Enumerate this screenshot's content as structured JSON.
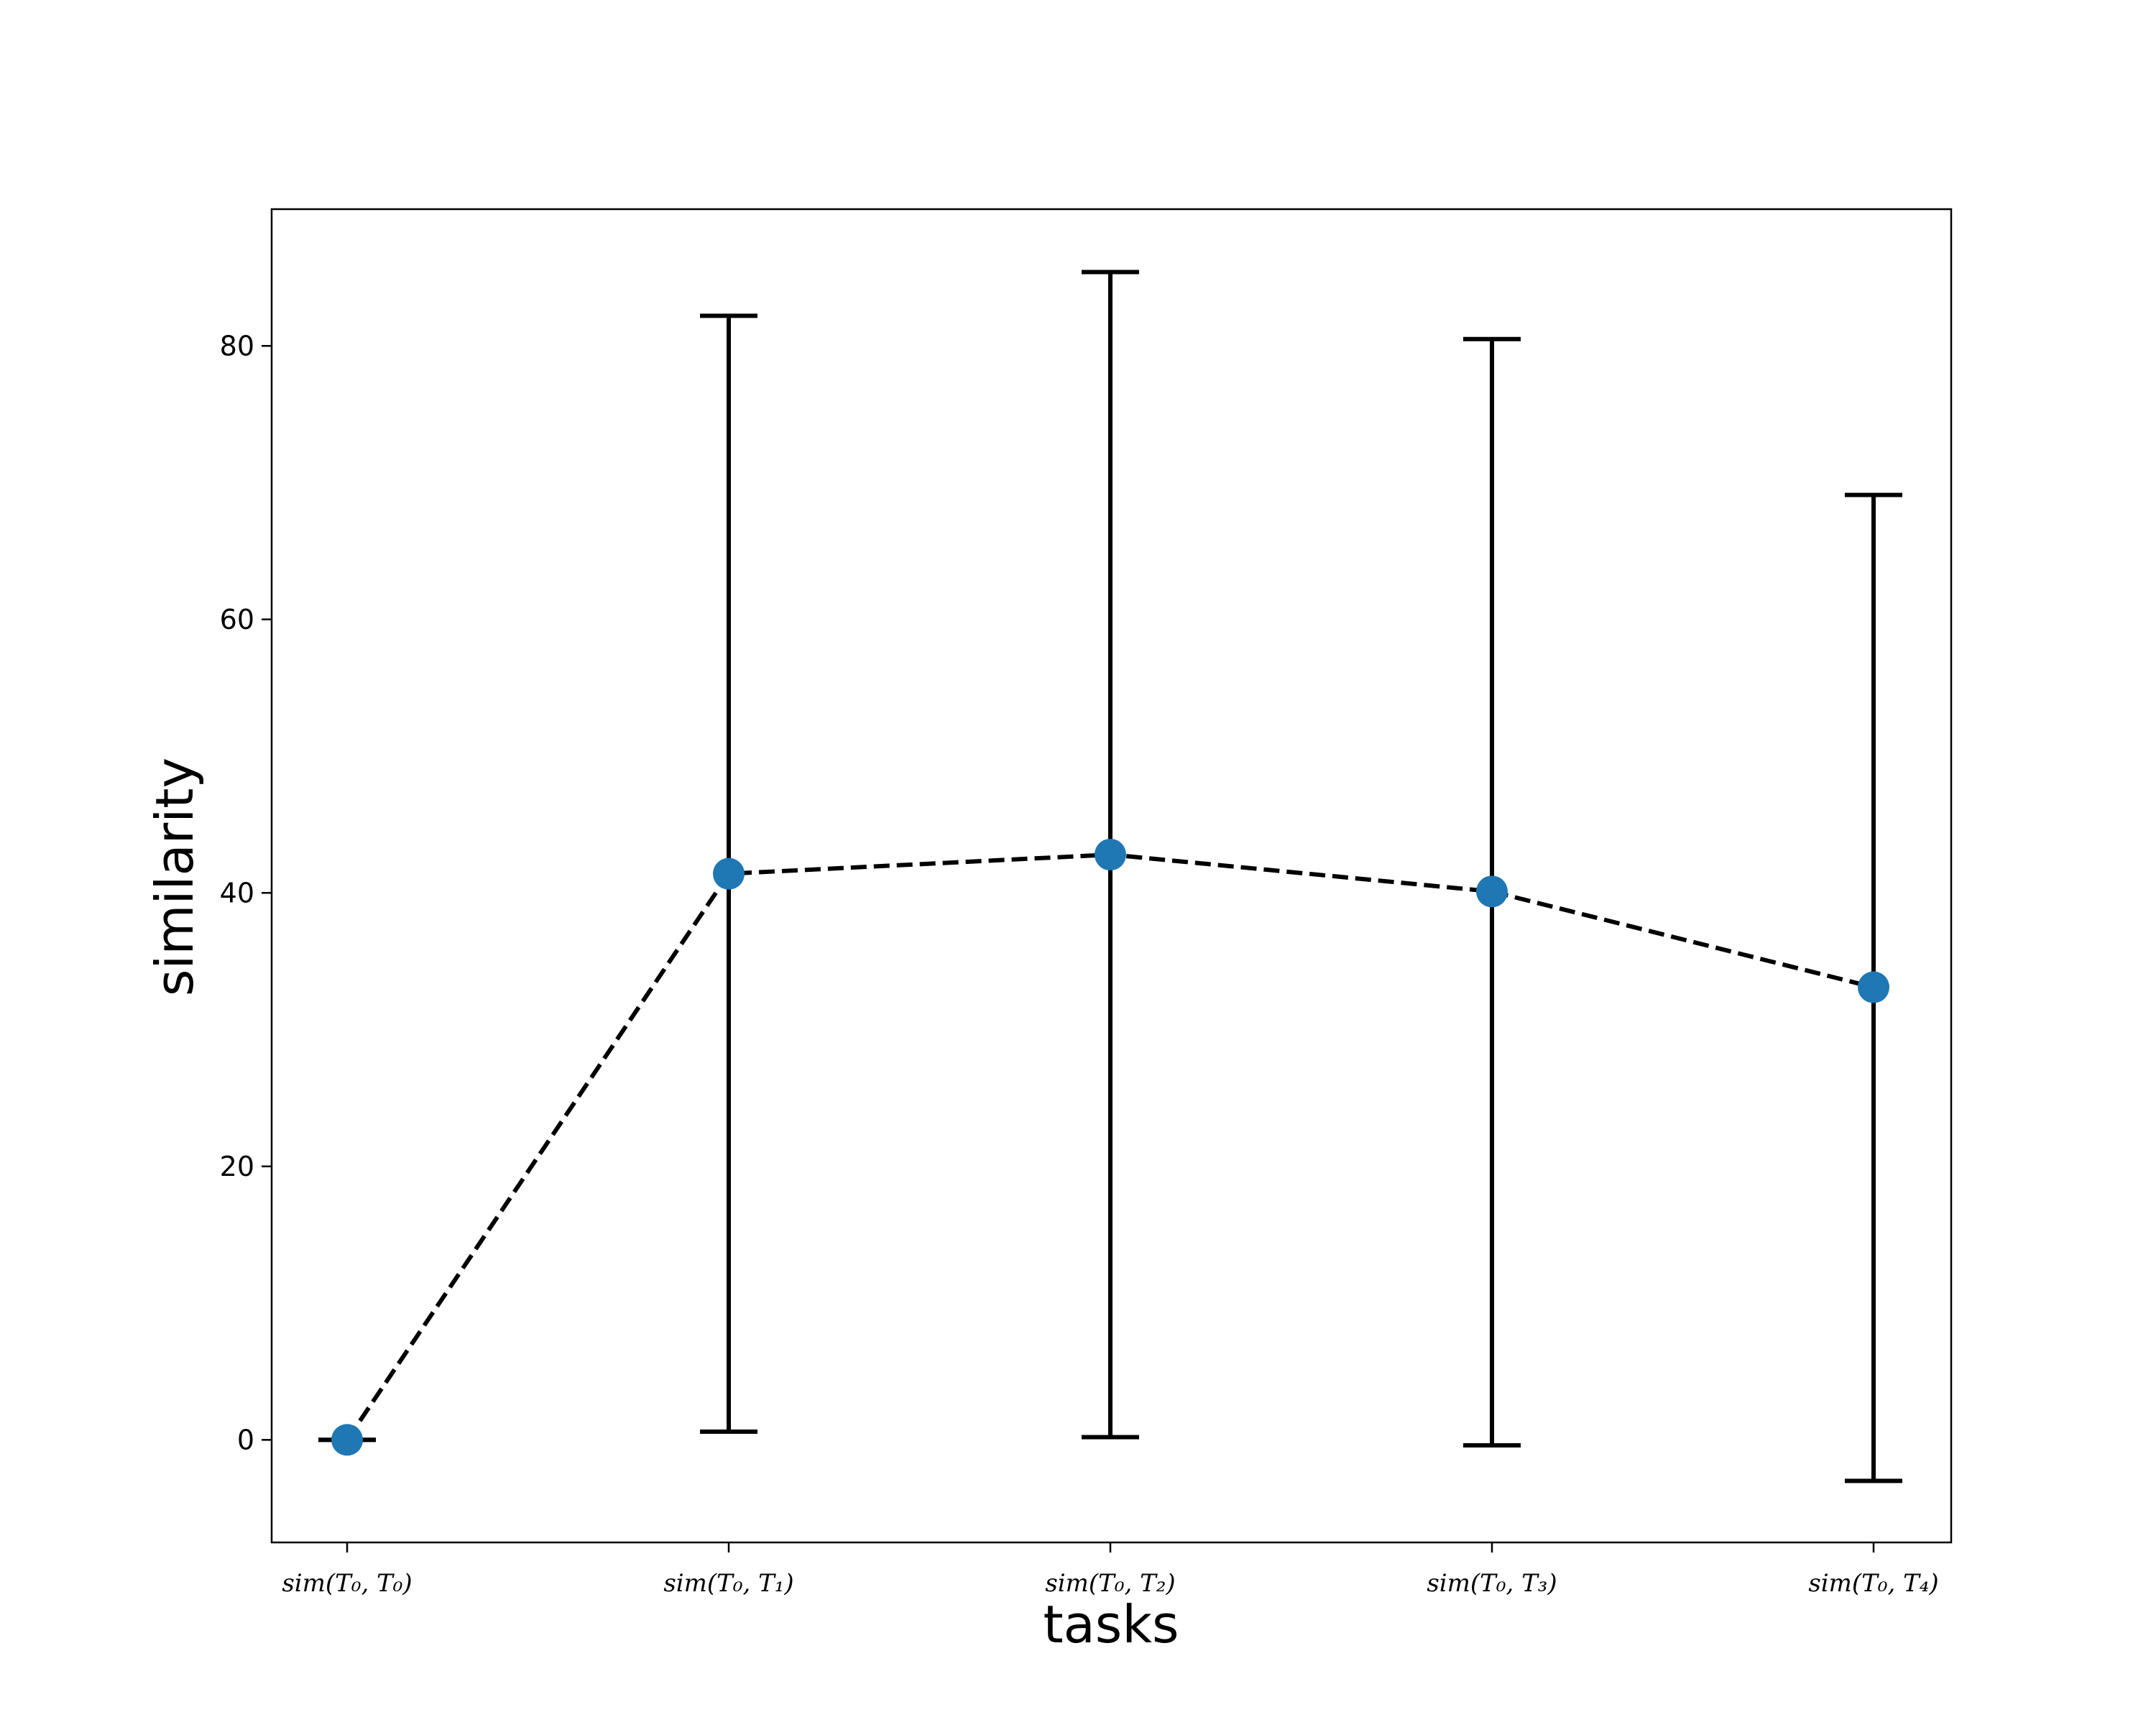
{
  "chart_data": {
    "type": "line",
    "title": "",
    "xlabel": "tasks",
    "ylabel": "similarity",
    "ylim": [
      -7.5,
      90
    ],
    "yticks": [
      0,
      20,
      40,
      60,
      80
    ],
    "grid": false,
    "categories": [
      "sim(T₀, T₀)",
      "sim(T₀, T₁)",
      "sim(T₀, T₂)",
      "sim(T₀, T₃)",
      "sim(T₀, T₄)"
    ],
    "series": [
      {
        "values": [
          0,
          41.4,
          42.8,
          40.1,
          33.1
        ],
        "error_low": [
          0,
          0.6,
          0.2,
          -0.4,
          -3.0
        ],
        "error_high": [
          0,
          82.2,
          85.4,
          80.5,
          69.1
        ],
        "line_style": "dashed",
        "line_color": "#000000",
        "marker_color": "#1f77b4"
      }
    ]
  }
}
